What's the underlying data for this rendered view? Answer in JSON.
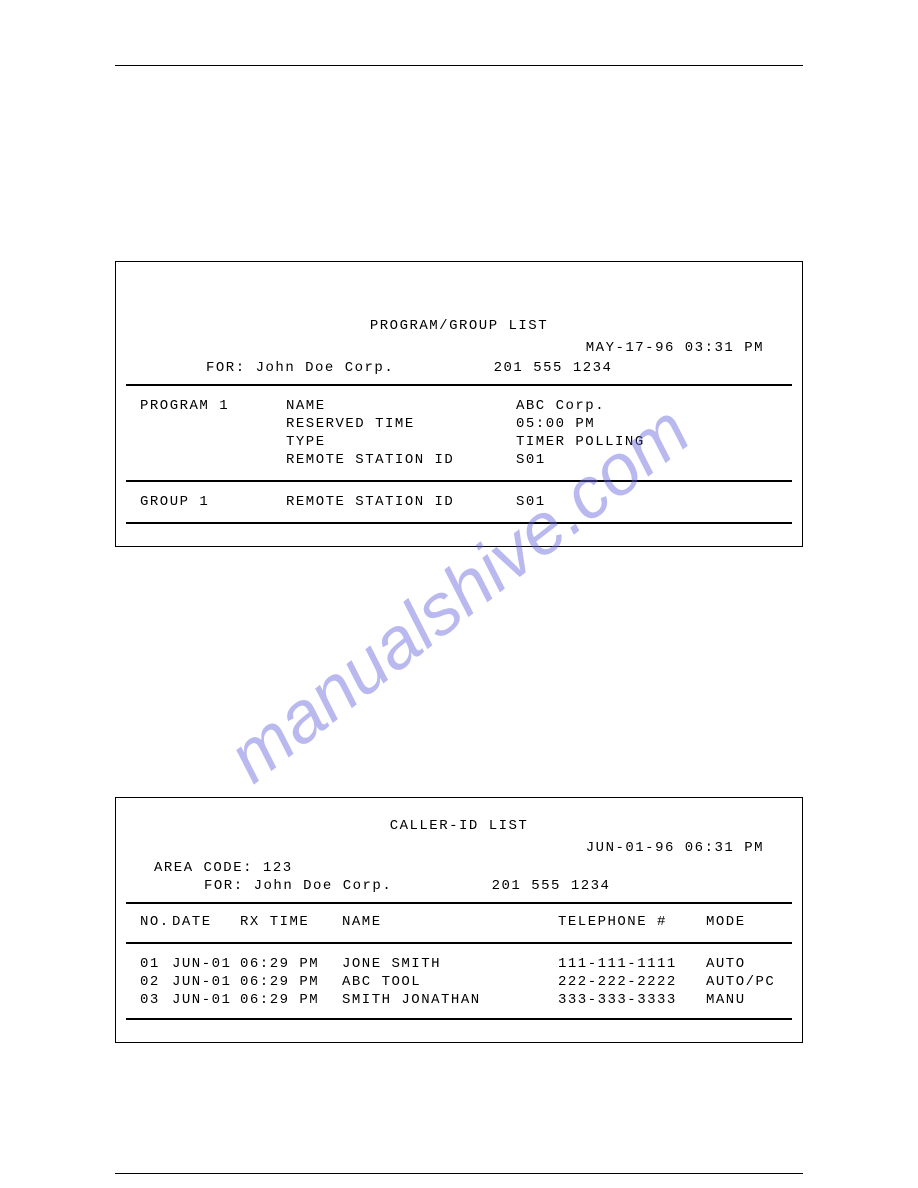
{
  "watermark": "manualshive.com",
  "report1": {
    "title": "PROGRAM/GROUP LIST",
    "timestamp": "MAY-17-96 03:31 PM",
    "for_label": "FOR:",
    "for_value": "John Doe Corp.",
    "for_phone": "201 555 1234",
    "program": {
      "label": "PROGRAM 1",
      "fields": {
        "name_label": "NAME",
        "name_value": "ABC Corp.",
        "reserved_label": "RESERVED TIME",
        "reserved_value": "05:00 PM",
        "type_label": "TYPE",
        "type_value": "TIMER POLLING",
        "remoteid_label": "REMOTE STATION ID",
        "remoteid_value": "S01"
      }
    },
    "group": {
      "label": "GROUP 1",
      "remoteid_label": "REMOTE STATION ID",
      "remoteid_value": "S01"
    }
  },
  "report2": {
    "title": "CALLER-ID LIST",
    "timestamp": "JUN-01-96 06:31 PM",
    "area_label": "AREA CODE:",
    "area_value": "123",
    "for_label": "FOR:",
    "for_value": "John Doe Corp.",
    "for_phone": "201 555 1234",
    "headers": {
      "no": "NO.",
      "date": "DATE",
      "rxtime": "RX TIME",
      "name": "NAME",
      "tel": "TELEPHONE #",
      "mode": "MODE"
    },
    "rows": [
      {
        "no": "01",
        "date": "JUN-01",
        "rxtime": "06:29 PM",
        "name": "JONE SMITH",
        "tel": "111-111-1111",
        "mode": "AUTO"
      },
      {
        "no": "02",
        "date": "JUN-01",
        "rxtime": "06:29 PM",
        "name": "ABC TOOL",
        "tel": "222-222-2222",
        "mode": "AUTO/PC"
      },
      {
        "no": "03",
        "date": "JUN-01",
        "rxtime": "06:29 PM",
        "name": "SMITH JONATHAN",
        "tel": "333-333-3333",
        "mode": "MANU"
      }
    ]
  }
}
